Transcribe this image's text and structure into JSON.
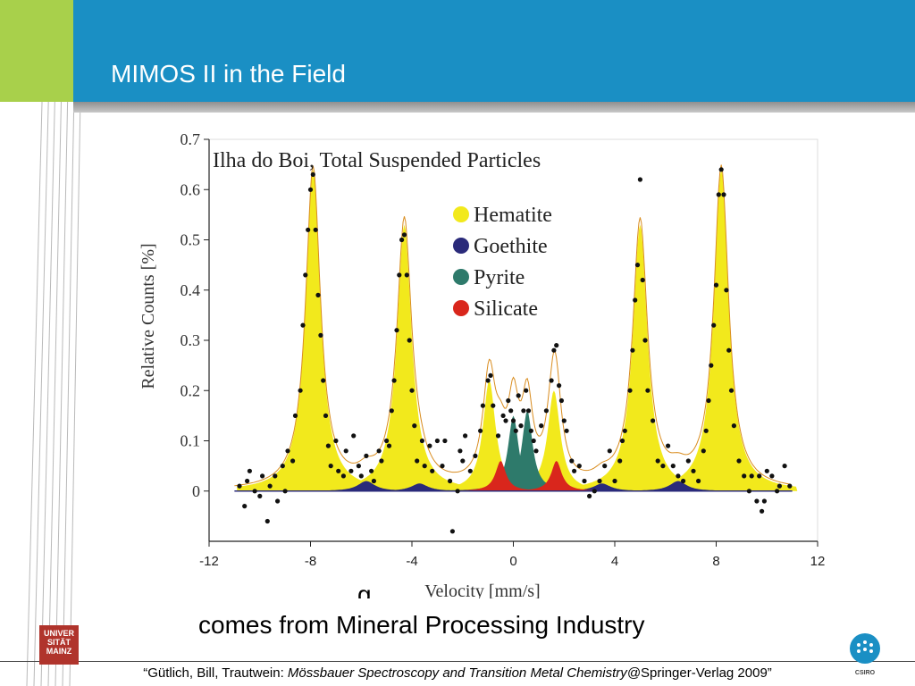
{
  "slide": {
    "title": "MIMOS II in the Field",
    "caption": "comes  from Mineral Processing Industry",
    "citation_prefix": "“Gütlich, Bill, Trautwein: ",
    "citation_italic": "Mössbauer Spectroscopy and Transition Metal Chemistry@",
    "citation_suffix": "Springer-Verlag 2009”",
    "logo_left": "UNIVERSITÄT MAINZ",
    "logo_right": "CSIRO"
  },
  "colors": {
    "title_bar": "#1a8fc4",
    "green_block": "#a8d04b",
    "hematite": "#f2e91c",
    "goethite": "#2a2a7a",
    "pyrite": "#2e7a6b",
    "silicate": "#d9261c",
    "fit_line": "#d98c1e"
  },
  "chart_data": {
    "type": "scatter",
    "title": "Ilha do Boi, Total Suspended Particles",
    "xlabel": "Velocity [mm/s]",
    "ylabel": "Relative Counts [%]",
    "xlim": [
      -12,
      12
    ],
    "ylim": [
      -0.1,
      0.7
    ],
    "x_ticks": [
      -12,
      -8,
      -4,
      0,
      4,
      8,
      12
    ],
    "y_ticks": [
      0,
      0.1,
      0.2,
      0.3,
      0.4,
      0.5,
      0.6,
      0.7
    ],
    "legend": [
      "Hematite",
      "Goethite",
      "Pyrite",
      "Silicate"
    ],
    "legend_position": "top-center",
    "components": [
      {
        "name": "Hematite",
        "peaks": [
          {
            "center": -7.9,
            "height": 0.64,
            "width": 0.35
          },
          {
            "center": -4.3,
            "height": 0.53,
            "width": 0.35
          },
          {
            "center": -0.95,
            "height": 0.22,
            "width": 0.3
          },
          {
            "center": 1.6,
            "height": 0.2,
            "width": 0.3
          },
          {
            "center": 5.0,
            "height": 0.53,
            "width": 0.35
          },
          {
            "center": 8.2,
            "height": 0.64,
            "width": 0.35
          }
        ]
      },
      {
        "name": "Goethite",
        "peaks": [
          {
            "center": -5.8,
            "height": 0.02,
            "width": 0.4
          },
          {
            "center": -3.7,
            "height": 0.015,
            "width": 0.4
          },
          {
            "center": 3.5,
            "height": 0.015,
            "width": 0.4
          },
          {
            "center": 6.5,
            "height": 0.02,
            "width": 0.4
          }
        ]
      },
      {
        "name": "Pyrite",
        "peaks": [
          {
            "center": 0.0,
            "height": 0.15,
            "width": 0.25
          },
          {
            "center": 0.55,
            "height": 0.16,
            "width": 0.25
          }
        ]
      },
      {
        "name": "Silicate",
        "peaks": [
          {
            "center": -0.5,
            "height": 0.06,
            "width": 0.25
          },
          {
            "center": 1.7,
            "height": 0.06,
            "width": 0.25
          }
        ]
      }
    ],
    "points": [
      [
        -10.8,
        0.01
      ],
      [
        -10.6,
        -0.03
      ],
      [
        -10.4,
        0.04
      ],
      [
        -10.2,
        0.0
      ],
      [
        -10.0,
        -0.01
      ],
      [
        -9.9,
        0.03
      ],
      [
        -9.7,
        -0.06
      ],
      [
        -9.6,
        0.01
      ],
      [
        -9.4,
        0.03
      ],
      [
        -9.3,
        -0.02
      ],
      [
        -9.1,
        0.05
      ],
      [
        -9.0,
        0.0
      ],
      [
        -8.9,
        0.08
      ],
      [
        -8.7,
        0.06
      ],
      [
        -8.6,
        0.15
      ],
      [
        -8.4,
        0.2
      ],
      [
        -8.3,
        0.33
      ],
      [
        -8.2,
        0.43
      ],
      [
        -8.1,
        0.52
      ],
      [
        -8.0,
        0.6
      ],
      [
        -7.9,
        0.63
      ],
      [
        -7.8,
        0.52
      ],
      [
        -7.7,
        0.39
      ],
      [
        -7.6,
        0.31
      ],
      [
        -7.5,
        0.22
      ],
      [
        -7.4,
        0.15
      ],
      [
        -7.3,
        0.09
      ],
      [
        -7.2,
        0.05
      ],
      [
        -7.0,
        0.1
      ],
      [
        -6.9,
        0.04
      ],
      [
        -6.7,
        0.03
      ],
      [
        -6.6,
        0.08
      ],
      [
        -6.4,
        0.04
      ],
      [
        -6.3,
        0.11
      ],
      [
        -6.1,
        0.05
      ],
      [
        -6.0,
        0.03
      ],
      [
        -5.8,
        0.07
      ],
      [
        -5.6,
        0.04
      ],
      [
        -5.5,
        0.02
      ],
      [
        -5.3,
        0.08
      ],
      [
        -5.2,
        0.06
      ],
      [
        -5.0,
        0.1
      ],
      [
        -4.9,
        0.09
      ],
      [
        -4.8,
        0.16
      ],
      [
        -4.7,
        0.22
      ],
      [
        -4.6,
        0.32
      ],
      [
        -4.5,
        0.43
      ],
      [
        -4.4,
        0.5
      ],
      [
        -4.3,
        0.51
      ],
      [
        -4.2,
        0.43
      ],
      [
        -4.1,
        0.3
      ],
      [
        -4.0,
        0.2
      ],
      [
        -3.9,
        0.13
      ],
      [
        -3.8,
        0.06
      ],
      [
        -3.6,
        0.1
      ],
      [
        -3.5,
        0.05
      ],
      [
        -3.3,
        0.09
      ],
      [
        -3.2,
        0.04
      ],
      [
        -3.0,
        0.1
      ],
      [
        -2.8,
        0.05
      ],
      [
        -2.7,
        0.1
      ],
      [
        -2.5,
        0.02
      ],
      [
        -2.4,
        -0.08
      ],
      [
        -2.2,
        0.0
      ],
      [
        -2.0,
        0.06
      ],
      [
        -1.9,
        0.11
      ],
      [
        -1.7,
        0.04
      ],
      [
        -1.5,
        0.07
      ],
      [
        -1.3,
        0.12
      ],
      [
        -1.2,
        0.17
      ],
      [
        -1.0,
        0.22
      ],
      [
        -0.9,
        0.23
      ],
      [
        -0.8,
        0.17
      ],
      [
        -0.6,
        0.11
      ],
      [
        -0.4,
        0.15
      ],
      [
        -0.3,
        0.14
      ],
      [
        -0.1,
        0.16
      ],
      [
        0.0,
        0.14
      ],
      [
        0.1,
        0.12
      ],
      [
        0.2,
        0.19
      ],
      [
        0.3,
        0.13
      ],
      [
        0.4,
        0.16
      ],
      [
        0.5,
        0.2
      ],
      [
        0.6,
        0.16
      ],
      [
        0.8,
        0.1
      ],
      [
        0.9,
        0.08
      ],
      [
        1.1,
        0.13
      ],
      [
        1.3,
        0.16
      ],
      [
        1.5,
        0.22
      ],
      [
        1.6,
        0.28
      ],
      [
        1.7,
        0.29
      ],
      [
        1.8,
        0.21
      ],
      [
        1.9,
        0.18
      ],
      [
        2.1,
        0.12
      ],
      [
        2.3,
        0.06
      ],
      [
        2.4,
        0.04
      ],
      [
        2.6,
        0.05
      ],
      [
        2.8,
        0.02
      ],
      [
        3.0,
        -0.01
      ],
      [
        3.2,
        0.0
      ],
      [
        3.4,
        0.02
      ],
      [
        3.6,
        0.05
      ],
      [
        3.8,
        0.08
      ],
      [
        4.0,
        0.02
      ],
      [
        4.2,
        0.06
      ],
      [
        4.3,
        0.1
      ],
      [
        4.4,
        0.12
      ],
      [
        4.6,
        0.2
      ],
      [
        4.7,
        0.28
      ],
      [
        4.8,
        0.38
      ],
      [
        4.9,
        0.45
      ],
      [
        5.0,
        0.62
      ],
      [
        5.1,
        0.42
      ],
      [
        5.2,
        0.3
      ],
      [
        5.3,
        0.2
      ],
      [
        5.5,
        0.14
      ],
      [
        5.7,
        0.06
      ],
      [
        5.9,
        0.05
      ],
      [
        6.1,
        0.09
      ],
      [
        6.3,
        0.05
      ],
      [
        6.5,
        0.03
      ],
      [
        6.7,
        0.02
      ],
      [
        6.9,
        0.06
      ],
      [
        7.1,
        0.04
      ],
      [
        7.3,
        0.02
      ],
      [
        7.5,
        0.08
      ],
      [
        7.6,
        0.12
      ],
      [
        7.7,
        0.18
      ],
      [
        7.8,
        0.25
      ],
      [
        7.9,
        0.33
      ],
      [
        8.0,
        0.41
      ],
      [
        8.1,
        0.59
      ],
      [
        8.2,
        0.64
      ],
      [
        8.3,
        0.59
      ],
      [
        8.4,
        0.4
      ],
      [
        8.5,
        0.28
      ],
      [
        8.6,
        0.2
      ],
      [
        8.7,
        0.13
      ],
      [
        8.9,
        0.06
      ],
      [
        9.1,
        0.03
      ],
      [
        9.3,
        0.0
      ],
      [
        9.4,
        0.03
      ],
      [
        9.6,
        -0.02
      ],
      [
        9.7,
        0.03
      ],
      [
        9.9,
        -0.02
      ],
      [
        10.0,
        0.04
      ],
      [
        10.2,
        0.03
      ],
      [
        10.4,
        0.0
      ],
      [
        10.5,
        0.01
      ],
      [
        10.7,
        0.05
      ],
      [
        10.9,
        0.01
      ],
      [
        9.8,
        -0.04
      ],
      [
        -10.5,
        0.02
      ],
      [
        0.7,
        0.12
      ],
      [
        -0.2,
        0.18
      ],
      [
        2.0,
        0.14
      ],
      [
        -2.1,
        0.08
      ]
    ]
  }
}
